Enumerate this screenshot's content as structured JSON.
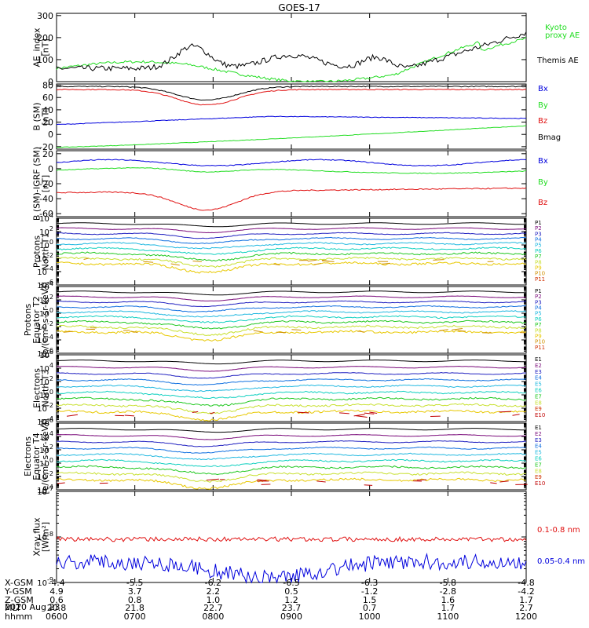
{
  "title": "GOES-17",
  "date_label": "2020 Aug 23",
  "colors": {
    "black": "#000000",
    "red": "#e01010",
    "green": "#22dd22",
    "blue": "#0000dd",
    "p_levels": [
      "#000000",
      "#7a0a7a",
      "#2020c0",
      "#1070e0",
      "#20b8e0",
      "#10d0c0",
      "#20c820",
      "#c8e030",
      "#e8c800",
      "#d09000",
      "#d03000",
      "#c00000"
    ]
  },
  "chart_data": [
    {
      "type": "line",
      "panel_id": "ae",
      "ylabel": "AE_index\n[nT]",
      "yscale": "linear",
      "ylim": [
        0,
        310
      ],
      "yticks": [
        0,
        100,
        200,
        300
      ],
      "series": [
        {
          "name": "Kyoto\nproxy AE",
          "color": "green"
        },
        {
          "name": "Themis AE",
          "color": "black"
        }
      ]
    },
    {
      "type": "line",
      "panel_id": "bsm",
      "ylabel": "B (SM)\n[nT]",
      "yscale": "linear",
      "ylim": [
        -24,
        82
      ],
      "yticks": [
        -20,
        0,
        20,
        40,
        60,
        80
      ],
      "series": [
        {
          "name": "Bx",
          "color": "blue"
        },
        {
          "name": "By",
          "color": "green"
        },
        {
          "name": "Bz",
          "color": "red"
        },
        {
          "name": "Bmag",
          "color": "black"
        }
      ]
    },
    {
      "type": "line",
      "panel_id": "bigrf",
      "ylabel": "B (SM)-IGRF (SM)\n[nT]",
      "yscale": "linear",
      "ylim": [
        -64,
        24
      ],
      "yticks": [
        -60,
        -40,
        -20,
        0,
        20
      ],
      "series": [
        {
          "name": "Bx",
          "color": "blue"
        },
        {
          "name": "By",
          "color": "green"
        },
        {
          "name": "Bz",
          "color": "red"
        }
      ]
    },
    {
      "type": "line",
      "panel_id": "pn",
      "ylabel": "Protons\nNorth T1",
      "yscale": "log",
      "ylim_exp": [
        -6,
        4
      ],
      "yticks_exp": [
        -6,
        -4,
        -2,
        0,
        2,
        4
      ],
      "series": [
        {
          "name": "P1"
        },
        {
          "name": "P2"
        },
        {
          "name": "P3"
        },
        {
          "name": "P4"
        },
        {
          "name": "P5"
        },
        {
          "name": "P6"
        },
        {
          "name": "P7"
        },
        {
          "name": "P8"
        },
        {
          "name": "P9"
        },
        {
          "name": "P10"
        },
        {
          "name": "P11"
        }
      ]
    },
    {
      "type": "line",
      "panel_id": "pe",
      "ylabel": "Protons\nEquator T2\n[p/(cm²-s-sr-keV)]",
      "yscale": "log",
      "ylim_exp": [
        -6,
        4
      ],
      "yticks_exp": [
        -6,
        -4,
        -2,
        0,
        2,
        4
      ],
      "series": [
        {
          "name": "P1"
        },
        {
          "name": "P2"
        },
        {
          "name": "P3"
        },
        {
          "name": "P4"
        },
        {
          "name": "P5"
        },
        {
          "name": "P6"
        },
        {
          "name": "P7"
        },
        {
          "name": "P8"
        },
        {
          "name": "P9"
        },
        {
          "name": "P10"
        },
        {
          "name": "P11"
        }
      ]
    },
    {
      "type": "line",
      "panel_id": "en",
      "ylabel": "Electrons\nNorth T3",
      "yscale": "log",
      "ylim_exp": [
        -4,
        6
      ],
      "yticks_exp": [
        -4,
        -2,
        0,
        2,
        4,
        6
      ],
      "series": [
        {
          "name": "E1"
        },
        {
          "name": "E2"
        },
        {
          "name": "E3"
        },
        {
          "name": "E4"
        },
        {
          "name": "E5"
        },
        {
          "name": "E6"
        },
        {
          "name": "E7"
        },
        {
          "name": "E8"
        },
        {
          "name": "E9"
        },
        {
          "name": "E10"
        }
      ]
    },
    {
      "type": "line",
      "panel_id": "ee",
      "ylabel": "Electrons\nEquator T4\n[e/(cm²-s-sr-keV)]",
      "yscale": "log",
      "ylim_exp": [
        -4,
        6
      ],
      "yticks_exp": [
        -4,
        -2,
        0,
        2,
        4,
        6
      ],
      "series": [
        {
          "name": "E1"
        },
        {
          "name": "E2"
        },
        {
          "name": "E3"
        },
        {
          "name": "E4"
        },
        {
          "name": "E5"
        },
        {
          "name": "E6"
        },
        {
          "name": "E7"
        },
        {
          "name": "E8"
        },
        {
          "name": "E9"
        },
        {
          "name": "E10"
        }
      ]
    },
    {
      "type": "line",
      "panel_id": "xray",
      "ylabel": "Xray flux\n[W/m²]",
      "yscale": "log",
      "ylim_exp": [
        -9,
        -7
      ],
      "yticks_exp": [
        -9,
        -8,
        -7
      ],
      "series": [
        {
          "name": "0.1-0.8 nm",
          "color": "red"
        },
        {
          "name": "0.05-0.4 nm",
          "color": "blue"
        }
      ]
    }
  ],
  "x_axis": {
    "row_labels": [
      "X-GSM",
      "Y-GSM",
      "Z-GSM",
      "MLT",
      "hhmm"
    ],
    "columns": [
      [
        "-4.4",
        "4.9",
        "0.6",
        "20.8",
        "0600"
      ],
      [
        "-5.5",
        "3.7",
        "0.8",
        "21.8",
        "0700"
      ],
      [
        "-6.2",
        "2.2",
        "1.0",
        "22.7",
        "0800"
      ],
      [
        "-6.5",
        "0.5",
        "1.2",
        "23.7",
        "0900"
      ],
      [
        "-6.3",
        "-1.2",
        "1.5",
        "0.7",
        "1000"
      ],
      [
        "-5.8",
        "-2.8",
        "1.6",
        "1.7",
        "1100"
      ],
      [
        "-4.8",
        "-4.2",
        "1.7",
        "2.7",
        "1200"
      ]
    ]
  }
}
